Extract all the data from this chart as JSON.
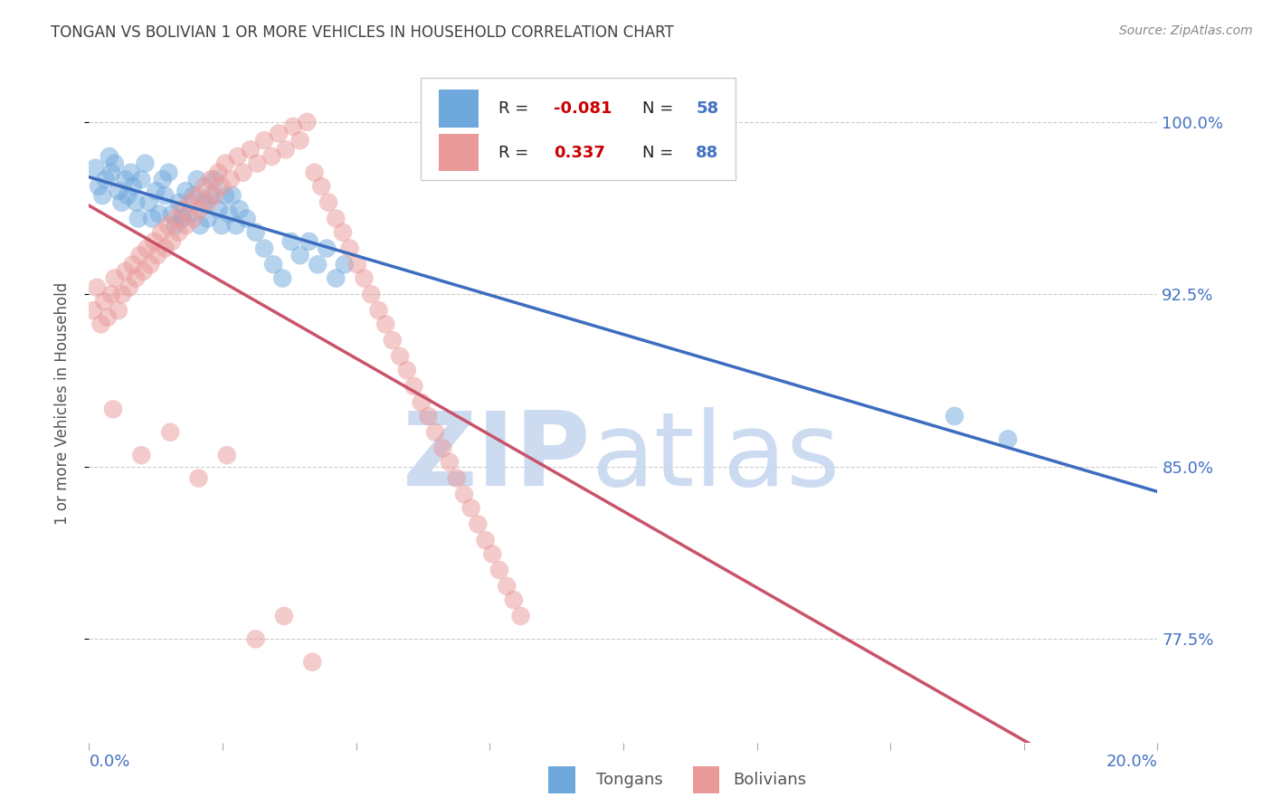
{
  "title": "TONGAN VS BOLIVIAN 1 OR MORE VEHICLES IN HOUSEHOLD CORRELATION CHART",
  "source": "Source: ZipAtlas.com",
  "ylabel": "1 or more Vehicles in Household",
  "ytick_labels": [
    "100.0%",
    "92.5%",
    "85.0%",
    "77.5%"
  ],
  "ytick_values": [
    1.0,
    0.925,
    0.85,
    0.775
  ],
  "xmin": 0.0,
  "xmax": 0.2,
  "ymin": 0.73,
  "ymax": 1.025,
  "tongan_color": "#6fa8dc",
  "bolivian_color": "#ea9999",
  "tongan_line_color": "#3c6dbf",
  "bolivian_line_color": "#c9536a",
  "watermark_zip_color": "#c8d8f0",
  "watermark_atlas_color": "#c8d8f0",
  "title_color": "#404040",
  "axis_label_color": "#4472c4",
  "legend_r_color": "#cc0000",
  "legend_n_color": "#4472c4",
  "background_color": "#ffffff",
  "grid_color": "#cccccc",
  "tongan_x": [
    0.0012,
    0.0018,
    0.0025,
    0.0031,
    0.0038,
    0.0042,
    0.0048,
    0.0055,
    0.0061,
    0.0067,
    0.0072,
    0.0078,
    0.0082,
    0.0088,
    0.0092,
    0.0098,
    0.0105,
    0.0112,
    0.0118,
    0.0125,
    0.0131,
    0.0138,
    0.0142,
    0.0149,
    0.0155,
    0.0162,
    0.0168,
    0.0175,
    0.0181,
    0.0188,
    0.0195,
    0.0202,
    0.0208,
    0.0215,
    0.0222,
    0.0228,
    0.0235,
    0.0242,
    0.0248,
    0.0255,
    0.0262,
    0.0268,
    0.0275,
    0.0282,
    0.0295,
    0.0312,
    0.0328,
    0.0345,
    0.0362,
    0.0378,
    0.0395,
    0.0412,
    0.0428,
    0.0445,
    0.0462,
    0.0478,
    0.162,
    0.172
  ],
  "tongan_y": [
    0.98,
    0.972,
    0.968,
    0.975,
    0.985,
    0.978,
    0.982,
    0.97,
    0.965,
    0.975,
    0.968,
    0.978,
    0.972,
    0.965,
    0.958,
    0.975,
    0.982,
    0.965,
    0.958,
    0.97,
    0.96,
    0.975,
    0.968,
    0.978,
    0.96,
    0.955,
    0.965,
    0.958,
    0.97,
    0.96,
    0.968,
    0.975,
    0.955,
    0.965,
    0.958,
    0.968,
    0.975,
    0.962,
    0.955,
    0.968,
    0.96,
    0.968,
    0.955,
    0.962,
    0.958,
    0.952,
    0.945,
    0.938,
    0.932,
    0.948,
    0.942,
    0.948,
    0.938,
    0.945,
    0.932,
    0.938,
    0.872,
    0.862
  ],
  "bolivian_x": [
    0.0008,
    0.0015,
    0.0022,
    0.0028,
    0.0035,
    0.0042,
    0.0048,
    0.0055,
    0.0062,
    0.0068,
    0.0075,
    0.0082,
    0.0088,
    0.0095,
    0.0102,
    0.0108,
    0.0115,
    0.0122,
    0.0128,
    0.0135,
    0.0142,
    0.0148,
    0.0155,
    0.0162,
    0.0168,
    0.0175,
    0.0182,
    0.0188,
    0.0195,
    0.0202,
    0.0208,
    0.0215,
    0.0222,
    0.0228,
    0.0235,
    0.0242,
    0.0248,
    0.0255,
    0.0265,
    0.0278,
    0.0288,
    0.0302,
    0.0315,
    0.0328,
    0.0342,
    0.0355,
    0.0368,
    0.0382,
    0.0395,
    0.0408,
    0.0422,
    0.0435,
    0.0448,
    0.0462,
    0.0475,
    0.0488,
    0.0502,
    0.0515,
    0.0528,
    0.0542,
    0.0555,
    0.0568,
    0.0582,
    0.0595,
    0.0608,
    0.0622,
    0.0635,
    0.0648,
    0.0662,
    0.0675,
    0.0688,
    0.0702,
    0.0715,
    0.0728,
    0.0742,
    0.0755,
    0.0768,
    0.0782,
    0.0795,
    0.0808,
    0.0045,
    0.0098,
    0.0152,
    0.0205,
    0.0258,
    0.0312,
    0.0365,
    0.0418
  ],
  "bolivian_y": [
    0.918,
    0.928,
    0.912,
    0.922,
    0.915,
    0.925,
    0.932,
    0.918,
    0.925,
    0.935,
    0.928,
    0.938,
    0.932,
    0.942,
    0.935,
    0.945,
    0.938,
    0.948,
    0.942,
    0.952,
    0.945,
    0.955,
    0.948,
    0.958,
    0.952,
    0.962,
    0.955,
    0.965,
    0.958,
    0.968,
    0.962,
    0.972,
    0.965,
    0.975,
    0.968,
    0.978,
    0.972,
    0.982,
    0.975,
    0.985,
    0.978,
    0.988,
    0.982,
    0.992,
    0.985,
    0.995,
    0.988,
    0.998,
    0.992,
    1.0,
    0.978,
    0.972,
    0.965,
    0.958,
    0.952,
    0.945,
    0.938,
    0.932,
    0.925,
    0.918,
    0.912,
    0.905,
    0.898,
    0.892,
    0.885,
    0.878,
    0.872,
    0.865,
    0.858,
    0.852,
    0.845,
    0.838,
    0.832,
    0.825,
    0.818,
    0.812,
    0.805,
    0.798,
    0.792,
    0.785,
    0.875,
    0.855,
    0.865,
    0.845,
    0.855,
    0.775,
    0.785,
    0.765
  ]
}
